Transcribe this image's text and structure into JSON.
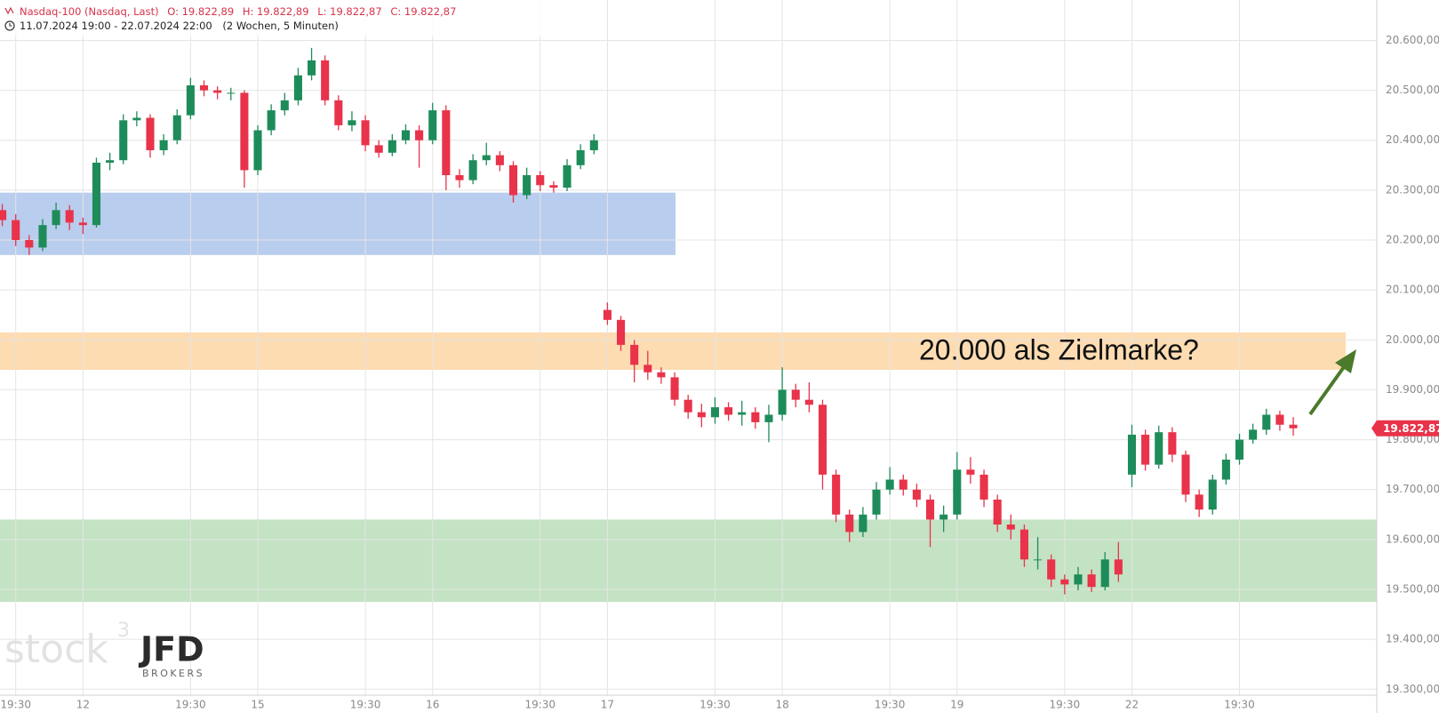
{
  "header": {
    "symbol": "Nasdaq-100 (Nasdaq, Last)",
    "ohlc": [
      "O: 19.822,89",
      "H: 19.822,89",
      "L: 19.822,87",
      "C: 19.822,87"
    ],
    "range": "11.07.2024 19:00 - 22.07.2024 22:00",
    "range_note": "(2 Wochen, 5 Minuten)"
  },
  "watermark": {
    "brand": "stock",
    "brand_sup": "3",
    "broker": "JFD",
    "broker_sub": "BROKERS"
  },
  "chart_data": {
    "type": "candlestick",
    "categories": [
      null,
      "19:30",
      null,
      null,
      null,
      null,
      "12",
      null,
      null,
      null,
      null,
      null,
      null,
      null,
      "19:30",
      null,
      null,
      null,
      null,
      "15",
      null,
      null,
      null,
      null,
      null,
      null,
      null,
      "19:30",
      null,
      null,
      null,
      null,
      "16",
      null,
      null,
      null,
      null,
      null,
      null,
      null,
      "19:30",
      null,
      null,
      null,
      null,
      "17",
      null,
      null,
      null,
      null,
      null,
      null,
      null,
      "19:30",
      null,
      null,
      null,
      null,
      "18",
      null,
      null,
      null,
      null,
      null,
      null,
      null,
      "19:30",
      null,
      null,
      null,
      null,
      "19",
      null,
      null,
      null,
      null,
      null,
      null,
      null,
      "19:30",
      null,
      null,
      null,
      null,
      "22",
      null,
      null,
      null,
      null,
      null,
      null,
      null,
      "19:30",
      null,
      null,
      null,
      null
    ],
    "open": [
      20260,
      20240,
      20200,
      20185,
      20230,
      20260,
      20235,
      20230,
      20355,
      20360,
      20440,
      20445,
      20380,
      20400,
      20450,
      20510,
      20500,
      20495,
      20495,
      20340,
      20420,
      20460,
      20480,
      20530,
      20560,
      20480,
      20430,
      20440,
      20390,
      20375,
      20400,
      20420,
      20400,
      20460,
      20330,
      20320,
      20360,
      20370,
      20350,
      20290,
      20330,
      20310,
      20305,
      20350,
      20380,
      20060,
      20040,
      19990,
      19950,
      19935,
      19925,
      19880,
      19855,
      19845,
      19865,
      19850,
      19855,
      19835,
      19850,
      19900,
      19880,
      19870,
      19730,
      19650,
      19615,
      19650,
      19700,
      19720,
      19700,
      19680,
      19640,
      19650,
      19740,
      19730,
      19680,
      19630,
      19620,
      19560,
      19560,
      19520,
      19510,
      19530,
      19505,
      19560,
      19730,
      19810,
      19750,
      19815,
      19770,
      19690,
      19660,
      19720,
      19760,
      19800,
      19820,
      19850,
      19830
    ],
    "high": [
      20272,
      20252,
      20210,
      20242,
      20275,
      20270,
      20245,
      20365,
      20375,
      20452,
      20458,
      20452,
      20412,
      20462,
      20525,
      20520,
      20508,
      20505,
      20500,
      20430,
      20472,
      20495,
      20545,
      20585,
      20570,
      20490,
      20458,
      20450,
      20400,
      20412,
      20432,
      20430,
      20475,
      20470,
      20342,
      20372,
      20395,
      20378,
      20358,
      20345,
      20338,
      20318,
      20362,
      20392,
      20412,
      20075,
      20048,
      20000,
      19978,
      19945,
      19935,
      19890,
      19872,
      19885,
      19875,
      19878,
      19865,
      19870,
      19945,
      19912,
      19915,
      19880,
      19740,
      19660,
      19665,
      19715,
      19745,
      19730,
      19712,
      19690,
      19668,
      19775,
      19765,
      19740,
      19690,
      19650,
      19630,
      19605,
      19570,
      19530,
      19545,
      19540,
      19575,
      19595,
      19830,
      19820,
      19828,
      19825,
      19778,
      19700,
      19730,
      19772,
      19812,
      19832,
      19862,
      19858,
      19845
    ],
    "low": [
      20228,
      20188,
      20170,
      20178,
      20222,
      20220,
      20212,
      20225,
      20340,
      20352,
      20428,
      20365,
      20370,
      20392,
      20442,
      20488,
      20482,
      20480,
      20305,
      20330,
      20410,
      20450,
      20470,
      20520,
      20470,
      20420,
      20418,
      20378,
      20365,
      20368,
      20392,
      20345,
      20392,
      20300,
      20305,
      20312,
      20350,
      20338,
      20275,
      20282,
      20298,
      20295,
      20298,
      20342,
      20372,
      20030,
      19978,
      19915,
      19920,
      19912,
      19868,
      19842,
      19825,
      19832,
      19838,
      19828,
      19822,
      19795,
      19838,
      19865,
      19855,
      19700,
      19635,
      19595,
      19605,
      19640,
      19690,
      19688,
      19665,
      19585,
      19615,
      19640,
      19712,
      19665,
      19615,
      19600,
      19545,
      19540,
      19505,
      19490,
      19498,
      19495,
      19498,
      19515,
      19705,
      19738,
      19742,
      19755,
      19675,
      19645,
      19650,
      19710,
      19750,
      19792,
      19810,
      19818,
      19808
    ],
    "close": [
      20240,
      20200,
      20185,
      20230,
      20260,
      20235,
      20230,
      20355,
      20360,
      20440,
      20445,
      20380,
      20400,
      20450,
      20510,
      20500,
      20495,
      20495,
      20340,
      20420,
      20460,
      20480,
      20530,
      20560,
      20480,
      20430,
      20440,
      20390,
      20375,
      20400,
      20420,
      20400,
      20460,
      20330,
      20320,
      20360,
      20370,
      20350,
      20290,
      20330,
      20310,
      20305,
      20350,
      20380,
      20400,
      20040,
      19990,
      19950,
      19935,
      19925,
      19880,
      19855,
      19845,
      19865,
      19850,
      19855,
      19835,
      19850,
      19900,
      19880,
      19870,
      19730,
      19650,
      19615,
      19650,
      19700,
      19720,
      19700,
      19680,
      19640,
      19650,
      19740,
      19730,
      19680,
      19630,
      19620,
      19560,
      19560,
      19520,
      19510,
      19530,
      19505,
      19560,
      19530,
      19810,
      19750,
      19815,
      19770,
      19690,
      19660,
      19720,
      19760,
      19800,
      19820,
      19850,
      19830,
      19822.87
    ],
    "up_color": "#1e8c5a",
    "down_color": "#e8334a",
    "ylim": [
      19288,
      20681
    ],
    "yticks": [
      {
        "value": 19300,
        "label": "19.300,00"
      },
      {
        "value": 19400,
        "label": "19.400,00"
      },
      {
        "value": 19500,
        "label": "19.500,00"
      },
      {
        "value": 19600,
        "label": "19.600,00"
      },
      {
        "value": 19700,
        "label": "19.700,00"
      },
      {
        "value": 19800,
        "label": "19.800,00"
      },
      {
        "value": 19900,
        "label": "19.900,00"
      },
      {
        "value": 20000,
        "label": "20.000,00"
      },
      {
        "value": 20100,
        "label": "20.100,00"
      },
      {
        "value": 20200,
        "label": "20.200,00"
      },
      {
        "value": 20300,
        "label": "20.300,00"
      },
      {
        "value": 20400,
        "label": "20.400,00"
      },
      {
        "value": 20500,
        "label": "20.500,00"
      },
      {
        "value": 20600,
        "label": "20.600,00"
      }
    ],
    "grid": true,
    "last_price": {
      "value": 19822.87,
      "label": "19.822,87",
      "color": "#e8334a"
    },
    "zones": [
      {
        "from": 20170,
        "to": 20295,
        "color": "#b9cdee"
      },
      {
        "from": 19940,
        "to": 20015,
        "color": "#fddcb2"
      },
      {
        "from": 19475,
        "to": 19640,
        "color": "#c4e3c4"
      }
    ],
    "annotation": "20.000 als Zielmarke?"
  }
}
